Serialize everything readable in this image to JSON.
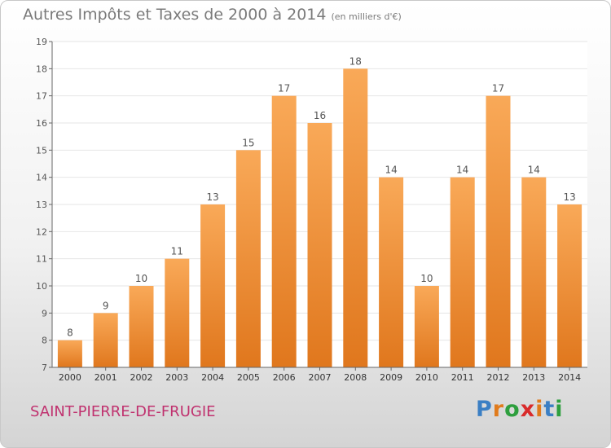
{
  "title": "Autres Impôts et Taxes de 2000 à 2014",
  "subtitle": "(en milliers d'€)",
  "commune": "SAINT-PIERRE-DE-FRUGIE",
  "brand": {
    "letters": [
      "P",
      "r",
      "o",
      "x",
      "i",
      "t",
      "i"
    ],
    "colors": [
      "#3b7fc4",
      "#e07b1c",
      "#2e9f3e",
      "#d92b2b",
      "#e07b1c",
      "#3b7fc4",
      "#2e9f3e"
    ]
  },
  "colors": {
    "bar_top": "#f9a958",
    "bar_bottom": "#e0771d",
    "axis": "#666666",
    "grid": "#e6e6e6"
  },
  "chart_data": {
    "type": "bar",
    "title": "Autres Impôts et Taxes de 2000 à 2014",
    "subtitle": "(en milliers d'€)",
    "categories": [
      "2000",
      "2001",
      "2002",
      "2003",
      "2004",
      "2005",
      "2006",
      "2007",
      "2008",
      "2009",
      "2010",
      "2011",
      "2012",
      "2013",
      "2014"
    ],
    "values": [
      8,
      9,
      10,
      11,
      13,
      15,
      17,
      16,
      18,
      14,
      10,
      14,
      17,
      14,
      13
    ],
    "ylim": [
      7,
      19
    ],
    "yticks": [
      7,
      8,
      9,
      10,
      11,
      12,
      13,
      14,
      15,
      16,
      17,
      18,
      19
    ],
    "grid": true,
    "data_labels": true
  }
}
